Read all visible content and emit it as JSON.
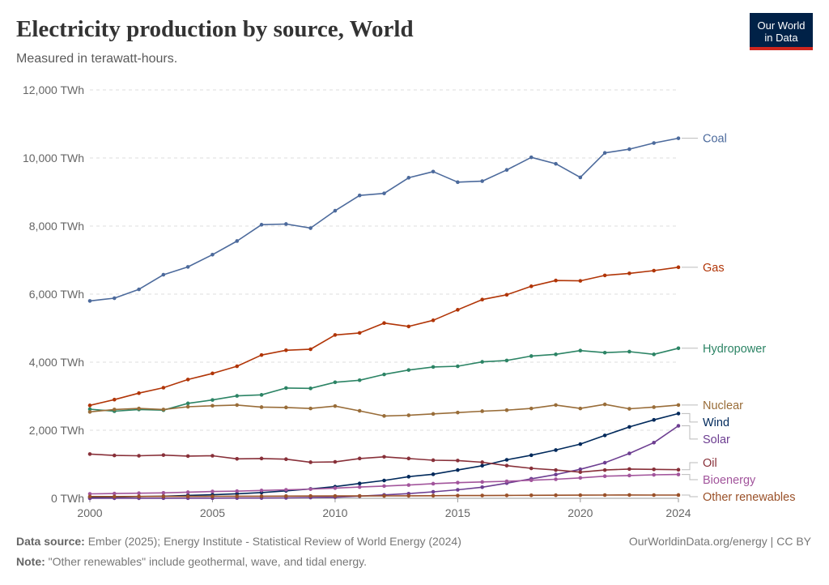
{
  "header": {
    "title": "Electricity production by source, World",
    "subtitle": "Measured in terawatt-hours.",
    "logo_line1": "Our World",
    "logo_line2": "in Data"
  },
  "footer": {
    "source_label": "Data source:",
    "source_text": "Ember (2025); Energy Institute - Statistical Review of World Energy (2024)",
    "note_label": "Note:",
    "note_text": "\"Other renewables\" include geothermal, wave, and tidal energy.",
    "link_text": "OurWorldinData.org/energy | CC BY"
  },
  "chart_data": {
    "type": "line",
    "title": "Electricity production by source, World",
    "subtitle": "Measured in terawatt-hours.",
    "xlabel": "",
    "ylabel": "",
    "xlim": [
      2000,
      2024
    ],
    "ylim": [
      0,
      12000
    ],
    "x_ticks": [
      {
        "value": 2000,
        "label": "2000"
      },
      {
        "value": 2005,
        "label": "2005"
      },
      {
        "value": 2010,
        "label": "2010"
      },
      {
        "value": 2015,
        "label": "2015"
      },
      {
        "value": 2020,
        "label": "2020"
      },
      {
        "value": 2024,
        "label": "2024"
      }
    ],
    "y_ticks": [
      {
        "value": 0,
        "label": "0 TWh"
      },
      {
        "value": 2000,
        "label": "2,000 TWh"
      },
      {
        "value": 4000,
        "label": "4,000 TWh"
      },
      {
        "value": 6000,
        "label": "6,000 TWh"
      },
      {
        "value": 8000,
        "label": "8,000 TWh"
      },
      {
        "value": 10000,
        "label": "10,000 TWh"
      },
      {
        "value": 12000,
        "label": "12,000 TWh"
      }
    ],
    "grid": "horizontal dashed",
    "legend": "right, inline labels",
    "x": [
      2000,
      2001,
      2002,
      2003,
      2004,
      2005,
      2006,
      2007,
      2008,
      2009,
      2010,
      2011,
      2012,
      2013,
      2014,
      2015,
      2016,
      2017,
      2018,
      2019,
      2020,
      2021,
      2022,
      2023,
      2024
    ],
    "series": [
      {
        "name": "Coal",
        "color": "#4c6a9c",
        "values": [
          5800,
          5880,
          6140,
          6570,
          6800,
          7160,
          7560,
          8040,
          8060,
          7940,
          8450,
          8900,
          8960,
          9420,
          9600,
          9290,
          9320,
          9650,
          10020,
          9830,
          9430,
          10150,
          10260,
          10440,
          10580
        ]
      },
      {
        "name": "Gas",
        "color": "#b13507",
        "values": [
          2730,
          2900,
          3090,
          3250,
          3490,
          3670,
          3880,
          4210,
          4350,
          4380,
          4800,
          4860,
          5150,
          5050,
          5230,
          5540,
          5840,
          5980,
          6230,
          6400,
          6390,
          6550,
          6610,
          6690,
          6790
        ]
      },
      {
        "name": "Hydropower",
        "color": "#2c8465",
        "values": [
          2620,
          2560,
          2610,
          2590,
          2790,
          2890,
          3010,
          3040,
          3240,
          3230,
          3410,
          3470,
          3640,
          3770,
          3860,
          3880,
          4010,
          4050,
          4180,
          4230,
          4340,
          4280,
          4310,
          4230,
          4410
        ]
      },
      {
        "name": "Nuclear",
        "color": "#996d39",
        "values": [
          2540,
          2610,
          2640,
          2610,
          2690,
          2720,
          2740,
          2680,
          2670,
          2640,
          2710,
          2570,
          2420,
          2440,
          2480,
          2520,
          2560,
          2590,
          2640,
          2740,
          2640,
          2760,
          2630,
          2680,
          2740
        ]
      },
      {
        "name": "Wind",
        "color": "#00295b",
        "values": [
          31,
          38,
          52,
          63,
          85,
          104,
          133,
          170,
          220,
          276,
          342,
          436,
          523,
          635,
          706,
          831,
          958,
          1131,
          1266,
          1418,
          1592,
          1848,
          2097,
          2304,
          2490
        ]
      },
      {
        "name": "Solar",
        "color": "#6d3e91",
        "values": [
          1,
          2,
          2,
          3,
          4,
          4,
          6,
          8,
          12,
          21,
          32,
          64,
          100,
          137,
          190,
          250,
          326,
          446,
          573,
          697,
          853,
          1046,
          1319,
          1636,
          2130
        ]
      },
      {
        "name": "Oil",
        "color": "#883039",
        "values": [
          1300,
          1260,
          1250,
          1270,
          1240,
          1250,
          1160,
          1170,
          1150,
          1060,
          1070,
          1170,
          1220,
          1170,
          1120,
          1110,
          1060,
          960,
          880,
          830,
          770,
          830,
          860,
          850,
          840
        ]
      },
      {
        "name": "Bioenergy",
        "color": "#a2559c",
        "values": [
          130,
          140,
          150,
          160,
          180,
          200,
          210,
          230,
          250,
          270,
          300,
          330,
          360,
          390,
          430,
          460,
          480,
          500,
          530,
          560,
          600,
          650,
          670,
          690,
          700
        ]
      },
      {
        "name": "Other renewables",
        "color": "#9a5129",
        "values": [
          52,
          52,
          55,
          57,
          58,
          59,
          61,
          62,
          64,
          67,
          68,
          70,
          71,
          73,
          77,
          80,
          82,
          85,
          88,
          90,
          92,
          95,
          97,
          95,
          96
        ]
      }
    ]
  }
}
